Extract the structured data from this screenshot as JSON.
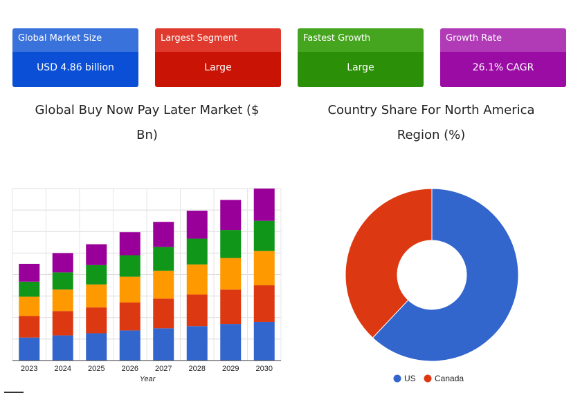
{
  "cards": [
    {
      "label": "Global Market Size",
      "value": "USD 4.86 billion",
      "head_color": "#3a72dc",
      "body_color": "#0b4fd6"
    },
    {
      "label": "Largest Segment",
      "value": "Large",
      "head_color": "#e03a2e",
      "body_color": "#c91405"
    },
    {
      "label": "Fastest Growth",
      "value": "Large",
      "head_color": "#46a51e",
      "body_color": "#2b8f07"
    },
    {
      "label": "Growth Rate",
      "value": "26.1% CAGR",
      "head_color": "#b13bb6",
      "body_color": "#9b0ca4"
    }
  ],
  "chart_data": [
    {
      "type": "bar",
      "stacked": true,
      "title": "Global Buy Now Pay Later Market ($ Bn)",
      "xlabel": "Year",
      "ylabel": "",
      "categories": [
        "2023",
        "2024",
        "2025",
        "2026",
        "2027",
        "2028",
        "2029",
        "2030"
      ],
      "ylim": [
        0,
        8
      ],
      "grid": true,
      "series": [
        {
          "color": "#3366cc",
          "values": [
            1.07,
            1.17,
            1.27,
            1.4,
            1.5,
            1.6,
            1.7,
            1.8
          ]
        },
        {
          "color": "#dc3912",
          "values": [
            1.0,
            1.13,
            1.2,
            1.3,
            1.38,
            1.47,
            1.6,
            1.7
          ]
        },
        {
          "color": "#ff9900",
          "values": [
            0.9,
            1.0,
            1.07,
            1.2,
            1.3,
            1.4,
            1.47,
            1.6
          ]
        },
        {
          "color": "#109618",
          "values": [
            0.7,
            0.8,
            0.9,
            1.0,
            1.1,
            1.2,
            1.3,
            1.4
          ]
        },
        {
          "color": "#990099",
          "values": [
            0.83,
            0.9,
            0.97,
            1.07,
            1.17,
            1.3,
            1.4,
            1.5
          ]
        }
      ]
    },
    {
      "type": "pie",
      "donut": true,
      "title": "Country Share For North America Region (%)",
      "legend_position": "bottom",
      "slices": [
        {
          "label": "US",
          "value": 62,
          "color": "#3366cc"
        },
        {
          "label": "Canada",
          "value": 38,
          "color": "#dc3912"
        }
      ]
    }
  ]
}
